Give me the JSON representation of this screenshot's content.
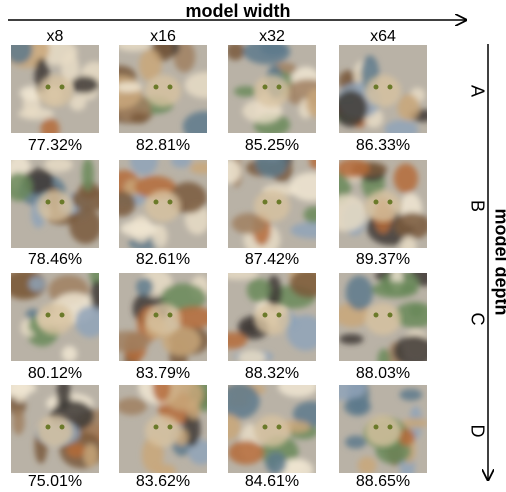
{
  "header": {
    "title": "model width"
  },
  "columns": [
    "x8",
    "x16",
    "x32",
    "x64"
  ],
  "side_label": "model depth",
  "rows": [
    {
      "label": "A",
      "values": [
        "77.32%",
        "82.81%",
        "85.25%",
        "86.33%"
      ]
    },
    {
      "label": "B",
      "values": [
        "78.46%",
        "82.61%",
        "87.42%",
        "89.37%"
      ]
    },
    {
      "label": "C",
      "values": [
        "80.12%",
        "83.79%",
        "88.32%",
        "88.03%"
      ]
    },
    {
      "label": "D",
      "values": [
        "75.01%",
        "83.62%",
        "84.61%",
        "88.65%"
      ]
    }
  ]
}
